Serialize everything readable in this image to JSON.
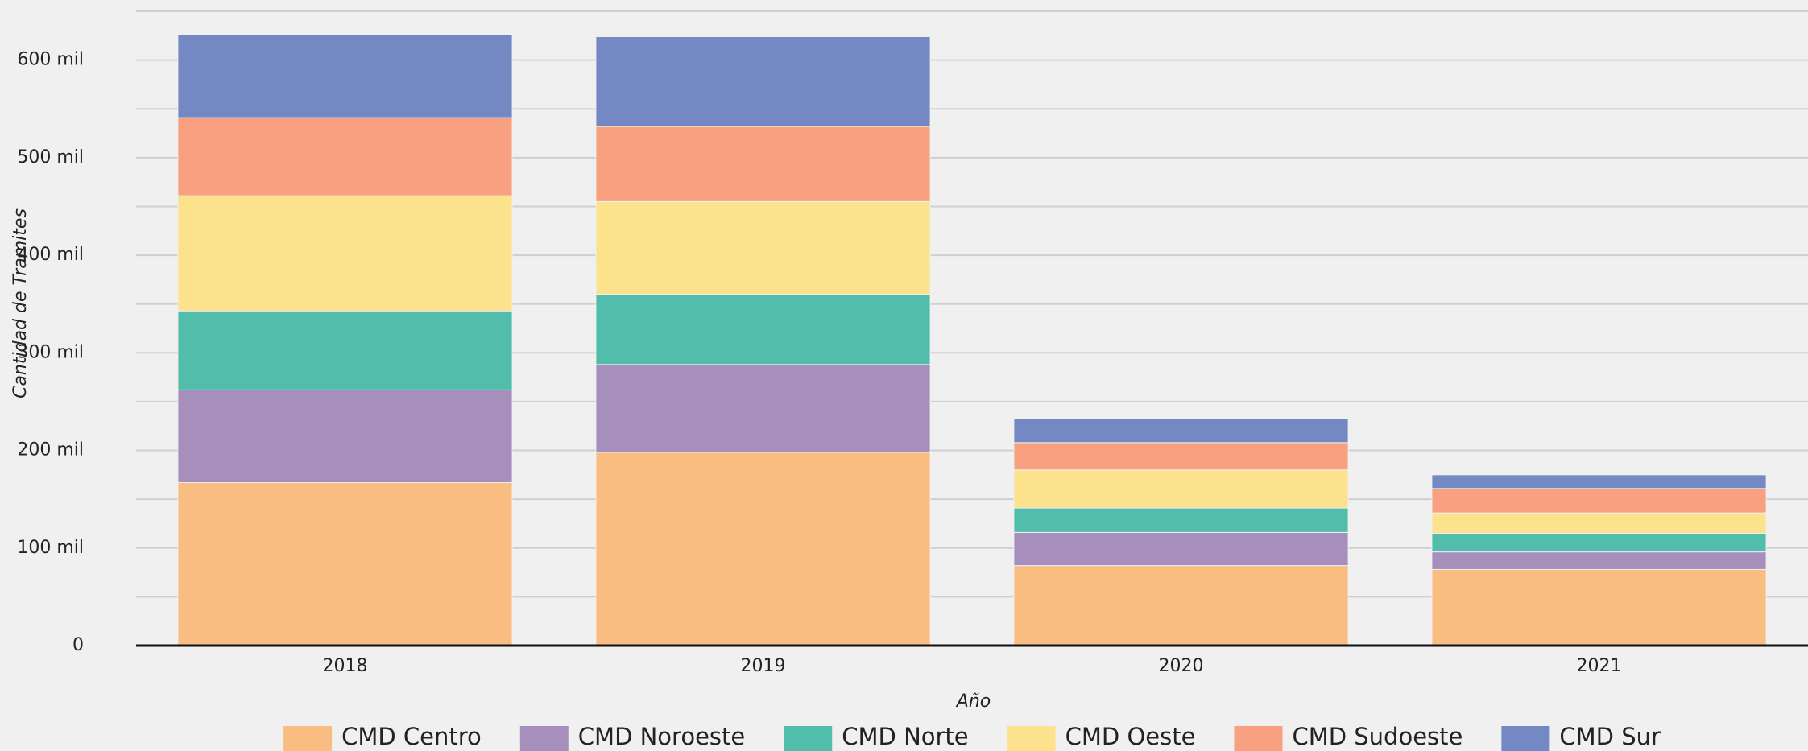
{
  "chart_data": {
    "type": "stacked_bar",
    "x_label": "Año",
    "y_label": "Cantidad de Tramites",
    "categories": [
      "2018",
      "2019",
      "2020",
      "2021"
    ],
    "series": [
      {
        "name": "CMD Centro",
        "color": "#f9bd82",
        "values": [
          167000,
          198000,
          82000,
          78000
        ]
      },
      {
        "name": "CMD Noroeste",
        "color": "#a68fbc",
        "values": [
          95000,
          90000,
          34000,
          18000
        ]
      },
      {
        "name": "CMD Norte",
        "color": "#52bdaa",
        "values": [
          81000,
          72000,
          25000,
          19000
        ]
      },
      {
        "name": "CMD Oeste",
        "color": "#fce28c",
        "values": [
          118000,
          95000,
          39000,
          21000
        ]
      },
      {
        "name": "CMD Sudoeste",
        "color": "#f8a07f",
        "values": [
          80000,
          77000,
          28000,
          25000
        ]
      },
      {
        "name": "CMD Sur",
        "color": "#7489c3",
        "values": [
          85000,
          92000,
          25000,
          14000
        ]
      }
    ],
    "ylim": [
      0,
      650000
    ],
    "yticks": [
      0,
      {
        "value": 100000,
        "label": "100 mil"
      },
      {
        "value": 200000,
        "label": "200 mil"
      },
      {
        "value": 300000,
        "label": "300 mil"
      },
      {
        "value": 400000,
        "label": "400 mil"
      },
      {
        "value": 500000,
        "label": "500 mil"
      },
      {
        "value": 600000,
        "label": "600 mil"
      }
    ],
    "minor_grid": [
      50000,
      150000,
      250000,
      350000,
      450000,
      550000,
      650000
    ],
    "grid": true,
    "legend": "bottom"
  }
}
